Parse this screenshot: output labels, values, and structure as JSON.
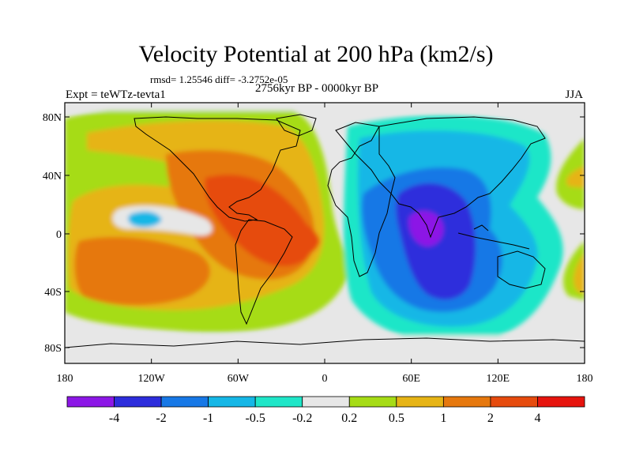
{
  "title": "Velocity Potential at 200 hPa (km2/s)",
  "stats": "rmsd= 1.25546 diff= -3.2752e-05",
  "experiment": "Expt = teWTz-tevta1",
  "period": "2756kyr BP - 0000kyr BP",
  "season": "JJA",
  "map": {
    "lat_ticks": [
      "80N",
      "40N",
      "0",
      "40S",
      "80S"
    ],
    "lon_ticks": [
      "180",
      "120W",
      "60W",
      "0",
      "60E",
      "120E",
      "180"
    ]
  },
  "colorbar": {
    "colors": [
      "#8c17e6",
      "#2d2ddc",
      "#1778e6",
      "#16b7e6",
      "#1fe6c8",
      "#e7e7e7",
      "#a6dc16",
      "#e6b416",
      "#e6780e",
      "#e64b0e",
      "#e6140e"
    ],
    "labels": [
      "-4",
      "-2",
      "-1",
      "-0.5",
      "-0.2",
      "0.2",
      "0.5",
      "1",
      "2",
      "4"
    ]
  }
}
